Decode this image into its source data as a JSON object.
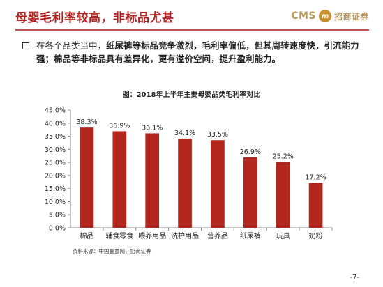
{
  "header": {
    "title": "母婴毛利率较高，非标品尤甚",
    "logo_cms": "CMS",
    "logo_mark": "m",
    "logo_text": "招商证券"
  },
  "intro": {
    "lead": "在各个品类当中，",
    "body": "纸尿裤等标品竞争激烈，毛利率偏低，但其周转速度快，引流能力强；棉品等非标品具有差异化，更有溢价空间，提升盈利能力。"
  },
  "footer": {
    "source": "资料来源：中国婴童网，招商证券",
    "page": "-7-"
  },
  "colors": {
    "bar": "#b3261e",
    "title_red": "#b22222",
    "rule": "#c0504d"
  },
  "chart_data": {
    "type": "bar",
    "title": "图：2018年上半年主要母婴品类毛利率对比",
    "categories": [
      "棉品",
      "辅食零食",
      "喂养用品",
      "洗护用品",
      "营养品",
      "纸尿裤",
      "玩具",
      "奶粉"
    ],
    "values": [
      38.3,
      36.9,
      36.1,
      34.1,
      33.5,
      26.9,
      25.2,
      17.2
    ],
    "data_labels": [
      "38.3%",
      "36.9%",
      "36.1%",
      "34.1%",
      "33.5%",
      "26.9%",
      "25.2%",
      "17.2%"
    ],
    "y_ticks": [
      "0.0%",
      "5.0%",
      "10.0%",
      "15.0%",
      "20.0%",
      "25.0%",
      "30.0%",
      "35.0%",
      "40.0%",
      "45.0%"
    ],
    "ylim": [
      0,
      45
    ],
    "xlabel": "",
    "ylabel": "",
    "grid": false,
    "legend": "none"
  }
}
